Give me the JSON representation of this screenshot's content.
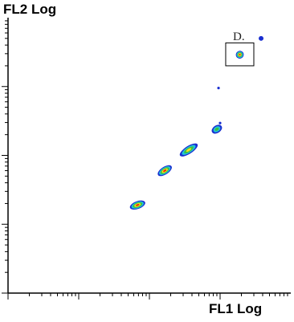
{
  "chart_data": {
    "type": "scatter",
    "title": "",
    "xlabel": "FL1 Log",
    "ylabel": "FL2 Log",
    "x_scale": "log",
    "y_scale": "log",
    "xlim": [
      1,
      10000
    ],
    "ylim": [
      1,
      10000
    ],
    "grid": false,
    "legend": "none",
    "gate": {
      "label": "D.",
      "x_range": [
        1200,
        3000
      ],
      "y_range": [
        2000,
        4300
      ]
    },
    "colors": {
      "density_low": "#1a2fd0",
      "density_midlow": "#21c4d8",
      "density_mid": "#3fbf3f",
      "density_midhigh": "#f0e020",
      "density_high": "#ee2a10"
    },
    "clusters": [
      {
        "name": "cluster-1",
        "x": 68,
        "y": 19,
        "spread_x": 10,
        "spread_y": 3,
        "angle": 20,
        "peak": "high"
      },
      {
        "name": "cluster-2",
        "x": 165,
        "y": 60,
        "spread_x": 10,
        "spread_y": 3,
        "angle": 33,
        "peak": "high"
      },
      {
        "name": "cluster-3",
        "x": 360,
        "y": 120,
        "spread_x": 13,
        "spread_y": 3,
        "angle": 33,
        "peak": "midhigh"
      },
      {
        "name": "cluster-4",
        "x": 900,
        "y": 240,
        "spread_x": 7,
        "spread_y": 3,
        "angle": 33,
        "peak": "mid"
      },
      {
        "name": "cluster-gated",
        "x": 1900,
        "y": 2900,
        "spread_x": 5,
        "spread_y": 3,
        "angle": 33,
        "peak": "high"
      }
    ],
    "points": [
      {
        "x": 3800,
        "y": 5000,
        "level": "low"
      },
      {
        "x": 950,
        "y": 950,
        "level": "low"
      },
      {
        "x": 1000,
        "y": 295,
        "level": "low"
      }
    ]
  }
}
